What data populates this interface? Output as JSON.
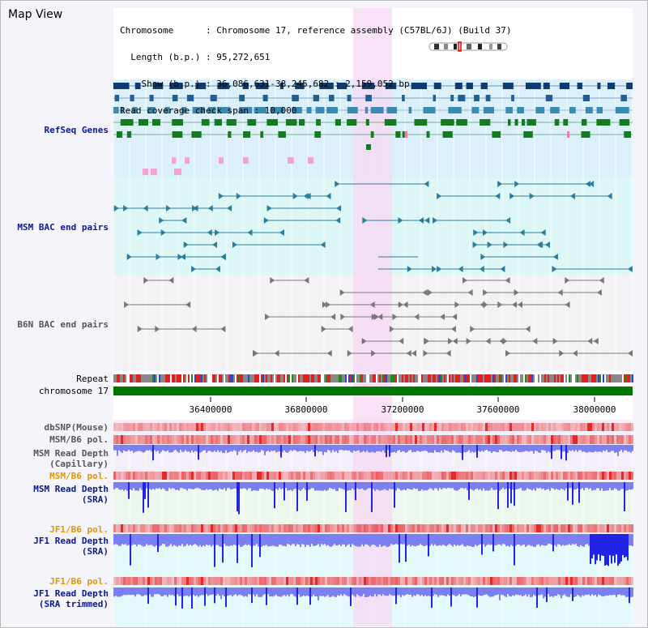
{
  "header": {
    "title": "Map View",
    "info_lines": [
      "Chromosome      : Chromosome 17, reference assembly (C57BL/6J) (Build 37)",
      "  Length (b.p.) : 95,272,651",
      "    Show (b.p.) : 36,086,631-38,245,682 : 2,159,052 bp",
      "Read coverage check span : 10,000"
    ]
  },
  "tracks": {
    "refseq": "RefSeq Genes",
    "msm_bac": "MSM BAC end pairs",
    "b6n_bac": "B6N BAC end pairs",
    "repeat": "Repeat",
    "chromosome": "chromosome 17",
    "dbsnp": "dbSNP(Mouse)",
    "msm_b6_pol_1": "MSM/B6 pol.",
    "msm_depth_cap_1": "MSM Read Depth",
    "msm_depth_cap_2": "(Capillary)",
    "msm_b6_pol_2": "MSM/B6 pol.",
    "msm_depth_sra_1": "MSM Read Depth",
    "msm_depth_sra_2": "(SRA)",
    "jf1_b6_pol_1": "JF1/B6 pol.",
    "jf1_depth_sra_1": "JF1 Read Depth",
    "jf1_depth_sra_2": "(SRA)",
    "jf1_b6_pol_2": "JF1/B6 pol.",
    "jf1_depth_trim_1": "JF1 Read Depth",
    "jf1_depth_trim_2": "(SRA trimmed)"
  },
  "axis": {
    "ticks": [
      "36400000",
      "36800000",
      "37200000",
      "37600000",
      "38000000"
    ]
  },
  "colors": {
    "refseq_bg": "#dcf0fb",
    "bac_bg": "#ddf7f7",
    "b6n_bg": "#f3f3f6",
    "highlight": "#f7d8f3",
    "chromosome_bar": "#007700",
    "navy_label": "#0a1a8c",
    "orange_label": "#e69400",
    "depth_blue": "#3333ee"
  }
}
